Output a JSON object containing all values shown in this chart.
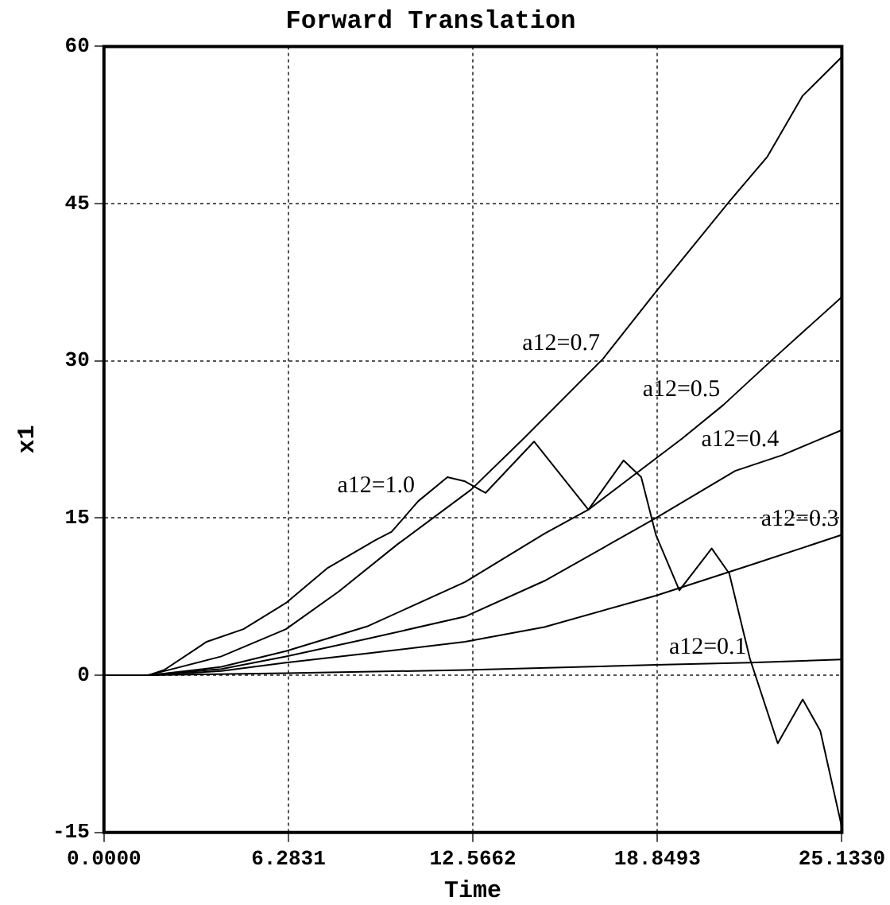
{
  "chart_data": {
    "type": "line",
    "title": "Forward Translation",
    "xlabel": "Time",
    "ylabel": "x1",
    "xlim": [
      0,
      25.133
    ],
    "xticks": [
      {
        "value": 0,
        "label": "0.0000"
      },
      {
        "value": 6.2831,
        "label": "6.2831"
      },
      {
        "value": 12.5662,
        "label": "12.5662"
      },
      {
        "value": 18.8493,
        "label": "18.8493"
      },
      {
        "value": 25.133,
        "label": "25.1330"
      }
    ],
    "ylim": [
      -15,
      60
    ],
    "yticks": [
      -15,
      0,
      15,
      30,
      45,
      60
    ],
    "grid": true,
    "line_style": "solid",
    "marker": "none",
    "legend": false,
    "series": [
      {
        "color": "#000000",
        "x": [
          0,
          1.5,
          2.05,
          3.5,
          4.75,
          6.2,
          7.6,
          9.25,
          9.8,
          10.7,
          11.7,
          12.3,
          13.0,
          14.65,
          16.5,
          17.7,
          18.3,
          18.8,
          19.6,
          20.7,
          21.3,
          22.0,
          22.95,
          23.8,
          24.4,
          25.133
        ],
        "values": [
          0,
          0,
          0.5,
          3.2,
          4.4,
          6.9,
          10.2,
          12.9,
          13.7,
          16.6,
          18.9,
          18.5,
          17.4,
          22.3,
          15.8,
          20.5,
          18.9,
          13.4,
          8.1,
          12.1,
          9.7,
          1.6,
          -6.5,
          -2.3,
          -5.3,
          -14.5
        ]
      },
      {
        "color": "#000000",
        "x": [
          0,
          1.5,
          4,
          6.2,
          8,
          10,
          12.5,
          14.3,
          17,
          18.8,
          21.3,
          22.6,
          23.8,
          25.133
        ],
        "values": [
          0,
          0,
          1.8,
          4.4,
          8,
          12.5,
          17.7,
          22.6,
          30.2,
          36.6,
          45.2,
          49.5,
          55.3,
          59
        ]
      },
      {
        "color": "#000000",
        "x": [
          0,
          1.5,
          4,
          6.2,
          9,
          12.3,
          15,
          16.5,
          19.7,
          21.1,
          22.8,
          25.133
        ],
        "values": [
          0,
          0,
          0.8,
          2.3,
          4.7,
          8.9,
          13.5,
          15.8,
          22.6,
          25.8,
          30.2,
          36.1
        ]
      },
      {
        "color": "#000000",
        "x": [
          0,
          1.5,
          4,
          6.2,
          9,
          12.3,
          15,
          18.8,
          21.5,
          23.1,
          25.133
        ],
        "values": [
          0,
          0,
          0.6,
          1.8,
          3.5,
          5.6,
          9,
          15,
          19.5,
          21,
          23.4
        ]
      },
      {
        "color": "#000000",
        "x": [
          0,
          1.5,
          4,
          6.2,
          9,
          12.3,
          15,
          18.8,
          22,
          25.133
        ],
        "values": [
          0,
          0,
          0.4,
          1.2,
          2.1,
          3.2,
          4.6,
          7.6,
          10.5,
          13.4
        ]
      },
      {
        "color": "#000000",
        "x": [
          0,
          1.5,
          6.2,
          12.3,
          18.8,
          22,
          25.133
        ],
        "values": [
          0,
          0,
          0.2,
          0.5,
          1.0,
          1.2,
          1.5
        ]
      }
    ],
    "annotations": [
      {
        "text": "a12=1.0",
        "x": 10.7,
        "y": 16.6
      },
      {
        "text": "a12=0.7",
        "x": 17,
        "y": 30.2
      },
      {
        "text": "a12=0.5",
        "x": 21.1,
        "y": 25.8
      },
      {
        "text": "a12=0.4",
        "x": 23.1,
        "y": 21
      },
      {
        "text": "a12=0.3",
        "x": 25.133,
        "y": 13.4
      },
      {
        "text": "a12=0.1",
        "x": 22,
        "y": 1.2
      }
    ]
  }
}
